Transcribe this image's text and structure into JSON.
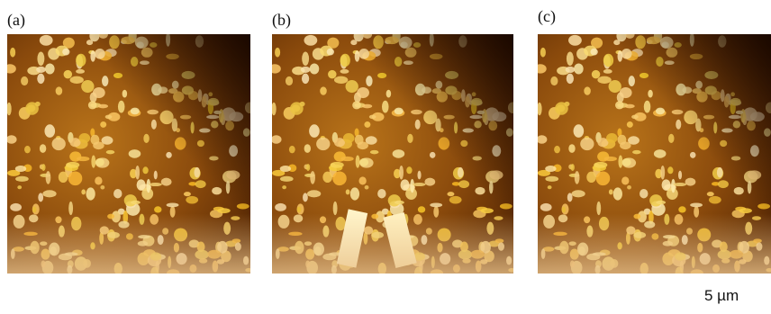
{
  "panels": [
    {
      "label": "(a)"
    },
    {
      "label": "(b)"
    },
    {
      "label": "(c)"
    }
  ],
  "scale_bar": {
    "label": "5 µm"
  }
}
